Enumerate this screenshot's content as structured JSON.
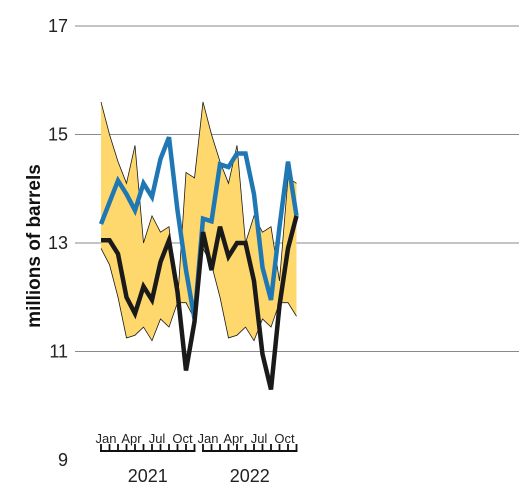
{
  "chart_data": {
    "type": "line",
    "title": "",
    "ylabel": "millions of barrels",
    "ylim": [
      9,
      17
    ],
    "yticks": [
      "9",
      "11",
      "13",
      "15",
      "17"
    ],
    "month_labels": [
      "Jan",
      "Apr",
      "Jul",
      "Oct",
      "Jan",
      "Apr",
      "Jul",
      "Oct"
    ],
    "month_label_index": [
      0,
      3,
      6,
      9,
      12,
      15,
      18,
      21
    ],
    "year_labels": [
      "2021",
      "2022"
    ],
    "x": [
      "2021-01",
      "2021-02",
      "2021-03",
      "2021-04",
      "2021-05",
      "2021-06",
      "2021-07",
      "2021-08",
      "2021-09",
      "2021-10",
      "2021-11",
      "2021-12",
      "2022-01",
      "2022-02",
      "2022-03",
      "2022-04",
      "2022-05",
      "2022-06",
      "2022-07",
      "2022-08",
      "2022-09",
      "2022-10",
      "2022-11",
      "2022-12"
    ],
    "band": {
      "upper": [
        15.6,
        15.0,
        14.5,
        14.1,
        14.8,
        13.0,
        13.5,
        13.2,
        13.3,
        11.9,
        14.3,
        14.2,
        15.6,
        15.0,
        14.5,
        14.1,
        14.8,
        13.0,
        13.5,
        13.2,
        13.3,
        12.3,
        14.2,
        14.1
      ],
      "lower": [
        12.9,
        12.6,
        12.0,
        11.25,
        11.3,
        11.45,
        11.2,
        11.6,
        11.45,
        11.9,
        11.9,
        11.6,
        12.9,
        12.6,
        12.0,
        11.25,
        11.3,
        11.45,
        11.2,
        11.6,
        11.45,
        11.9,
        11.9,
        11.65
      ],
      "color": "#fed86c",
      "edge_color": "#1a1a1a"
    },
    "series": [
      {
        "values": [
          13.35,
          13.75,
          14.15,
          13.9,
          13.6,
          14.1,
          13.85,
          14.55,
          14.95,
          13.6,
          12.5,
          11.6,
          13.45,
          13.4,
          14.45,
          14.4,
          14.65,
          14.65,
          13.9,
          12.55,
          11.95,
          13.3,
          14.5,
          13.5
        ],
        "color": "#1f77b4"
      },
      {
        "values": [
          13.05,
          13.05,
          12.8,
          12.0,
          11.7,
          12.2,
          11.95,
          12.65,
          13.05,
          12.1,
          10.65,
          11.55,
          13.2,
          12.5,
          13.3,
          12.75,
          13.0,
          13.0,
          12.3,
          10.95,
          10.3,
          11.85,
          12.9,
          13.5
        ],
        "color": "#1a1a1a"
      }
    ],
    "grid": "horizontal",
    "legend": "none"
  }
}
